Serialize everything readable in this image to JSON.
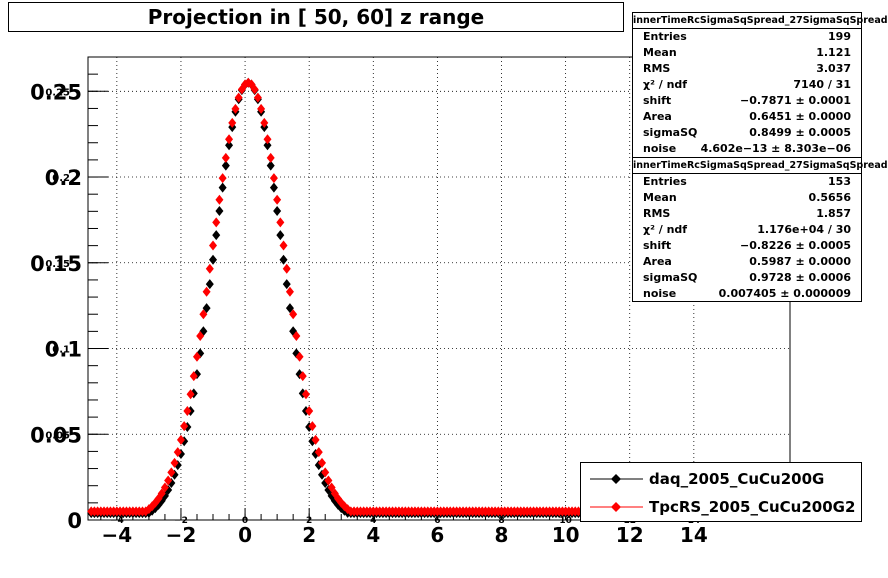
{
  "chart_data": {
    "type": "scatter",
    "title": "Projection in [  50,  60] z range",
    "xlabel": "",
    "ylabel": "",
    "xlim": [
      -4.9,
      17.0
    ],
    "ylim": [
      0,
      0.27
    ],
    "x_ticks": [
      "−4",
      "−2",
      "0",
      "2",
      "4",
      "6",
      "8",
      "10",
      "12",
      "14"
    ],
    "x_tick_values": [
      -4,
      -2,
      0,
      2,
      4,
      6,
      8,
      10,
      12,
      14
    ],
    "x_ticks_secondary": [
      "−4",
      "−2",
      "0",
      "2",
      "4",
      "6",
      "8",
      "10",
      "12",
      "14"
    ],
    "y_ticks": [
      "0",
      "0.05",
      "0.1",
      "0.15",
      "0.2",
      "0.25"
    ],
    "y_ticks_secondary": [
      "",
      "0.05",
      "0.1",
      "0.15",
      "0.2",
      "0.25"
    ],
    "y_tick_values": [
      0,
      0.05,
      0.1,
      0.15,
      0.2,
      0.25
    ],
    "grid": true,
    "legend_position": "bottom-right",
    "series": [
      {
        "name": "daq_2005_CuCu200G",
        "color": "#000000",
        "marker": "diamond",
        "peak": 0.255,
        "mean": 0.1,
        "sigma": 1.08,
        "tail_decay": 0.22,
        "plateau": 0.004,
        "x": [
          -4.8,
          17.0
        ]
      },
      {
        "name": "TpcRS_2005_CuCu200G2",
        "color": "#ff0000",
        "marker": "diamond",
        "peak": 0.255,
        "mean": 0.1,
        "sigma": 1.14,
        "tail_decay": 0.25,
        "plateau": 0.005,
        "x": [
          -4.8,
          17.0
        ]
      }
    ]
  },
  "stats_boxes": [
    {
      "title": "innerTimeRcSigmaSqSpread_27SigmaSqSpread",
      "rows": [
        {
          "label": "Entries",
          "value": "199"
        },
        {
          "label": "Mean",
          "value": "1.121"
        },
        {
          "label": "RMS",
          "value": "3.037"
        },
        {
          "label": "χ² / ndf",
          "value": "7140 / 31"
        },
        {
          "label": "shift",
          "value": "−0.7871 ± 0.0001"
        },
        {
          "label": "Area",
          "value": "0.6451 ± 0.0000"
        },
        {
          "label": "sigmaSQ",
          "value": "0.8499 ± 0.0005"
        },
        {
          "label": "noise",
          "value": "4.602e−13 ± 8.303e−06"
        }
      ]
    },
    {
      "title": "innerTimeRcSigmaSqSpread_27SigmaSqSpread",
      "rows": [
        {
          "label": "Entries",
          "value": "153"
        },
        {
          "label": "Mean",
          "value": "0.5656"
        },
        {
          "label": "RMS",
          "value": "1.857"
        },
        {
          "label": "χ² / ndf",
          "value": "1.176e+04 / 30"
        },
        {
          "label": "shift",
          "value": "−0.8226 ± 0.0005"
        },
        {
          "label": "Area",
          "value": "0.5987 ± 0.0000"
        },
        {
          "label": "sigmaSQ",
          "value": "0.9728 ± 0.0006"
        },
        {
          "label": "noise",
          "value": "0.007405 ± 0.000009"
        }
      ]
    }
  ]
}
